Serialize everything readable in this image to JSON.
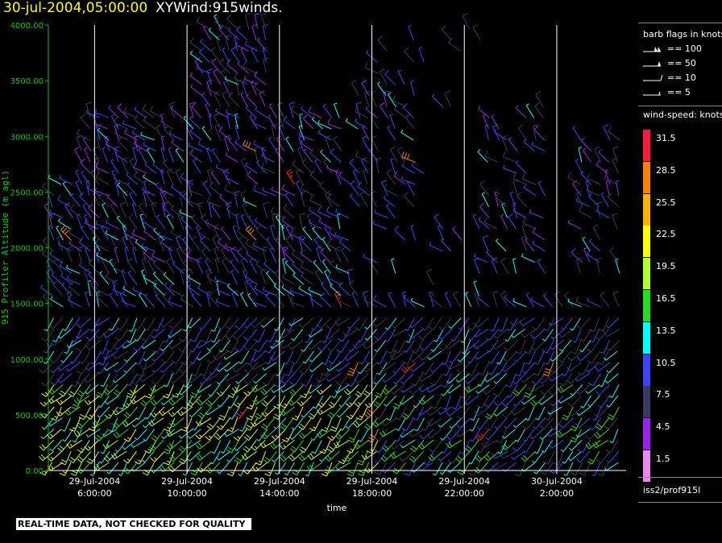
{
  "header": {
    "time": "30-jul-2004,05:00:00",
    "name": "XYWind:915winds."
  },
  "footer": {
    "notice": "REAL-TIME DATA, NOT CHECKED FOR QUALITY"
  },
  "colors": {
    "title_time": "#ffff00",
    "axis": "#ffffff",
    "y_axis_line": "#00cc00",
    "y_label": "#00cc00",
    "grid": "#ffffff"
  },
  "chart_data": {
    "type": "scatter",
    "subtype": "wind-barb time-height plot",
    "xlabel": "time",
    "ylabel": "915 Profiler Altitude (m agl)",
    "ylim": [
      0,
      4000
    ],
    "xlim": [
      "29-Jul-2004 04:00:00",
      "30-Jul-2004 05:00:00"
    ],
    "y_ticks": [
      "0.00",
      "500.00",
      "1000.00",
      "1500.00",
      "2000.00",
      "2500.00",
      "3000.00",
      "3500.00",
      "4000.00"
    ],
    "x_ticks": [
      {
        "date": "29-Jul-2004",
        "time": "6:00:00",
        "hour": 6
      },
      {
        "date": "29-Jul-2004",
        "time": "10:00:00",
        "hour": 10
      },
      {
        "date": "29-Jul-2004",
        "time": "14:00:00",
        "hour": 14
      },
      {
        "date": "29-Jul-2004",
        "time": "18:00:00",
        "hour": 18
      },
      {
        "date": "29-Jul-2004",
        "time": "22:00:00",
        "hour": 22
      },
      {
        "date": "30-Jul-2004",
        "time": "2:00:00",
        "hour": 26
      }
    ],
    "vertical_grid": true,
    "legend": {
      "placement": "right",
      "flags_title": "barb flags in knots",
      "flags": [
        {
          "label": "== 100",
          "kind": "double-pennant"
        },
        {
          "label": "== 50",
          "kind": "pennant"
        },
        {
          "label": "== 10",
          "kind": "full-barb"
        },
        {
          "label": "== 5",
          "kind": "half-barb"
        }
      ],
      "speed_title": "wind-speed: knots",
      "speed_scale": [
        {
          "label": "31.5",
          "color": "#ff1a3c"
        },
        {
          "label": "28.5",
          "color": "#ff8000"
        },
        {
          "label": "25.5",
          "color": "#ffb000"
        },
        {
          "label": "22.5",
          "color": "#ffff00"
        },
        {
          "label": "19.5",
          "color": "#b2ff33"
        },
        {
          "label": "16.5",
          "color": "#22dd22"
        },
        {
          "label": "13.5",
          "color": "#00ffff"
        },
        {
          "label": "10.5",
          "color": "#4040ff"
        },
        {
          "label": "7.5",
          "color": "#3a3a60"
        },
        {
          "label": "4.5",
          "color": "#9a22ee"
        },
        {
          "label": "1.5",
          "color": "#ee88ee"
        }
      ],
      "source": "iss2/prof915l"
    }
  }
}
